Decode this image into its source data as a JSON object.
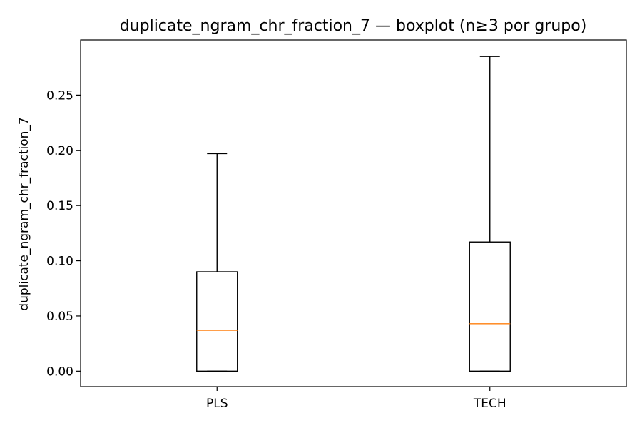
{
  "chart_data": {
    "type": "boxplot",
    "title": "duplicate_ngram_chr_fraction_7 — boxplot (n≥3 por grupo)",
    "xlabel": "",
    "ylabel": "duplicate_ngram_chr_fraction_7",
    "categories": [
      "PLS",
      "TECH"
    ],
    "ylim": [
      -0.014,
      0.3
    ],
    "yticks": [
      0.0,
      0.05,
      0.1,
      0.15,
      0.2,
      0.25
    ],
    "ytick_labels": [
      "0.00",
      "0.05",
      "0.10",
      "0.15",
      "0.20",
      "0.25"
    ],
    "grid": false,
    "boxes": [
      {
        "category": "PLS",
        "whisker_low": 0.0,
        "q1": 0.0,
        "median": 0.037,
        "q3": 0.09,
        "whisker_high": 0.197
      },
      {
        "category": "TECH",
        "whisker_low": 0.0,
        "q1": 0.0,
        "median": 0.043,
        "q3": 0.117,
        "whisker_high": 0.285
      }
    ],
    "colors": {
      "box": "#000000",
      "median": "#ff7f0e",
      "frame": "#000000"
    }
  }
}
